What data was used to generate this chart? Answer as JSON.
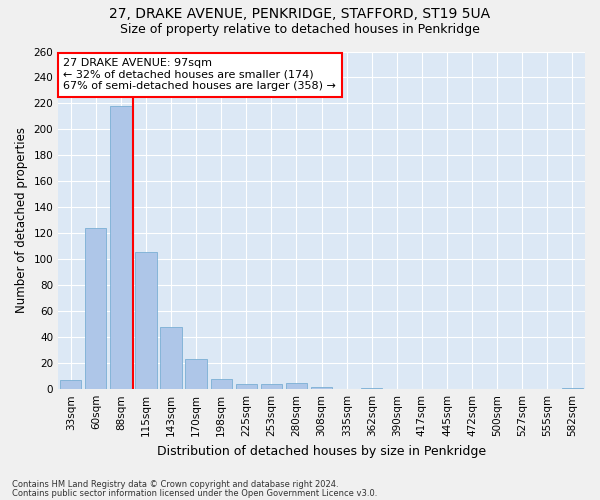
{
  "title1": "27, DRAKE AVENUE, PENKRIDGE, STAFFORD, ST19 5UA",
  "title2": "Size of property relative to detached houses in Penkridge",
  "xlabel": "Distribution of detached houses by size in Penkridge",
  "ylabel": "Number of detached properties",
  "categories": [
    "33sqm",
    "60sqm",
    "88sqm",
    "115sqm",
    "143sqm",
    "170sqm",
    "198sqm",
    "225sqm",
    "253sqm",
    "280sqm",
    "308sqm",
    "335sqm",
    "362sqm",
    "390sqm",
    "417sqm",
    "445sqm",
    "472sqm",
    "500sqm",
    "527sqm",
    "555sqm",
    "582sqm"
  ],
  "values": [
    7,
    124,
    218,
    106,
    48,
    23,
    8,
    4,
    4,
    5,
    2,
    0,
    1,
    0,
    0,
    0,
    0,
    0,
    0,
    0,
    1
  ],
  "bar_color": "#aec6e8",
  "bar_edge_color": "#7aafd4",
  "property_bin_index": 2,
  "red_line_x": 2.5,
  "annotation_line1": "27 DRAKE AVENUE: 97sqm",
  "annotation_line2": "← 32% of detached houses are smaller (174)",
  "annotation_line3": "67% of semi-detached houses are larger (358) →",
  "ylim": [
    0,
    260
  ],
  "yticks": [
    0,
    20,
    40,
    60,
    80,
    100,
    120,
    140,
    160,
    180,
    200,
    220,
    240,
    260
  ],
  "background_color": "#dce8f5",
  "grid_color": "#ffffff",
  "fig_background": "#f0f0f0",
  "footnote1": "Contains HM Land Registry data © Crown copyright and database right 2024.",
  "footnote2": "Contains public sector information licensed under the Open Government Licence v3.0.",
  "title1_fontsize": 10,
  "title2_fontsize": 9,
  "tick_fontsize": 7.5,
  "ylabel_fontsize": 8.5,
  "xlabel_fontsize": 9,
  "footnote_fontsize": 6,
  "ann_fontsize": 8
}
